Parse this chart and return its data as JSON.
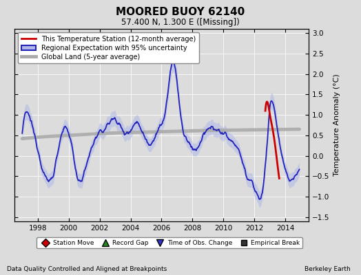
{
  "title": "MOORED BUOY 62140",
  "subtitle": "57.400 N, 1.300 E ([Missing])",
  "xlabel_bottom": "Data Quality Controlled and Aligned at Breakpoints",
  "xlabel_bottom_right": "Berkeley Earth",
  "ylabel": "Temperature Anomaly (°C)",
  "xlim": [
    1996.5,
    2015.5
  ],
  "ylim": [
    -1.6,
    3.1
  ],
  "yticks": [
    -1.5,
    -1.0,
    -0.5,
    0.0,
    0.5,
    1.0,
    1.5,
    2.0,
    2.5,
    3.0
  ],
  "xticks": [
    1998,
    2000,
    2002,
    2004,
    2006,
    2008,
    2010,
    2012,
    2014
  ],
  "background_color": "#dcdcdc",
  "legend_labels": [
    "This Temperature Station (12-month average)",
    "Regional Expectation with 95% uncertainty",
    "Global Land (5-year average)"
  ],
  "legend_line_colors": [
    "#cc0000",
    "#3333cc",
    "#aaaaaa"
  ],
  "band_color": "#b0b8e8",
  "marker_labels": [
    "Station Move",
    "Record Gap",
    "Time of Obs. Change",
    "Empirical Break"
  ],
  "marker_colors": [
    "#cc0000",
    "#228822",
    "#3333cc",
    "#333333"
  ],
  "marker_shapes": [
    "D",
    "^",
    "v",
    "s"
  ]
}
